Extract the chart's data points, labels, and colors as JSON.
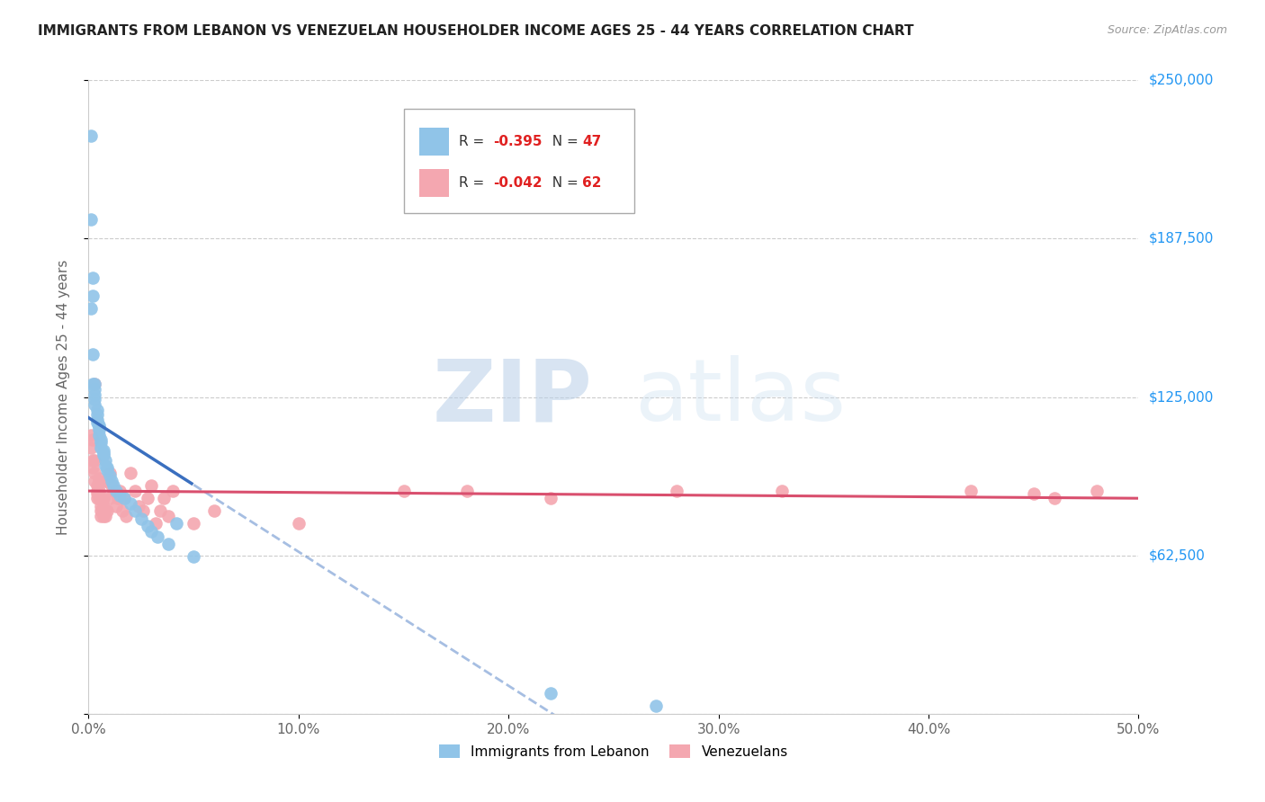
{
  "title": "IMMIGRANTS FROM LEBANON VS VENEZUELAN HOUSEHOLDER INCOME AGES 25 - 44 YEARS CORRELATION CHART",
  "source": "Source: ZipAtlas.com",
  "ylabel": "Householder Income Ages 25 - 44 years",
  "xlabel_ticks": [
    "0.0%",
    "10.0%",
    "20.0%",
    "30.0%",
    "40.0%",
    "50.0%"
  ],
  "xlabel_vals": [
    0.0,
    0.1,
    0.2,
    0.3,
    0.4,
    0.5
  ],
  "ylabel_ticks": [
    "$0",
    "$62,500",
    "$125,000",
    "$187,500",
    "$250,000"
  ],
  "ylabel_vals": [
    0,
    62500,
    125000,
    187500,
    250000
  ],
  "ylim": [
    0,
    250000
  ],
  "xlim": [
    0.0,
    0.5
  ],
  "lebanon_R": "-0.395",
  "lebanon_N": "47",
  "venezuela_R": "-0.042",
  "venezuela_N": "62",
  "lebanon_color": "#90c4e8",
  "venezuela_color": "#f4a7b0",
  "lebanon_line_color": "#3a6fbf",
  "venezuela_line_color": "#d94f6e",
  "lebanon_x": [
    0.001,
    0.001,
    0.001,
    0.002,
    0.002,
    0.002,
    0.002,
    0.003,
    0.003,
    0.003,
    0.003,
    0.003,
    0.004,
    0.004,
    0.004,
    0.004,
    0.005,
    0.005,
    0.005,
    0.005,
    0.006,
    0.006,
    0.006,
    0.007,
    0.007,
    0.007,
    0.008,
    0.008,
    0.009,
    0.009,
    0.01,
    0.011,
    0.012,
    0.013,
    0.015,
    0.017,
    0.02,
    0.022,
    0.025,
    0.028,
    0.03,
    0.033,
    0.038,
    0.042,
    0.05,
    0.22,
    0.27
  ],
  "lebanon_y": [
    228000,
    195000,
    160000,
    172000,
    165000,
    142000,
    130000,
    130000,
    128000,
    126000,
    124000,
    122000,
    120000,
    118000,
    116000,
    115000,
    114000,
    113000,
    112000,
    110000,
    108000,
    107000,
    105000,
    104000,
    103000,
    102000,
    100000,
    98000,
    97000,
    96000,
    94000,
    92000,
    90000,
    88000,
    86000,
    85000,
    83000,
    80000,
    77000,
    74000,
    72000,
    70000,
    67000,
    75000,
    62000,
    8000,
    3000
  ],
  "venezuela_x": [
    0.001,
    0.001,
    0.002,
    0.002,
    0.002,
    0.003,
    0.003,
    0.003,
    0.003,
    0.004,
    0.004,
    0.004,
    0.004,
    0.005,
    0.005,
    0.005,
    0.005,
    0.006,
    0.006,
    0.006,
    0.007,
    0.007,
    0.007,
    0.007,
    0.008,
    0.008,
    0.008,
    0.009,
    0.009,
    0.01,
    0.01,
    0.011,
    0.012,
    0.013,
    0.014,
    0.015,
    0.016,
    0.017,
    0.018,
    0.02,
    0.022,
    0.024,
    0.026,
    0.028,
    0.03,
    0.032,
    0.034,
    0.036,
    0.038,
    0.04,
    0.05,
    0.06,
    0.1,
    0.15,
    0.18,
    0.22,
    0.28,
    0.33,
    0.42,
    0.45,
    0.46,
    0.48
  ],
  "venezuela_y": [
    105000,
    110000,
    100000,
    108000,
    97000,
    95000,
    100000,
    92000,
    130000,
    90000,
    85000,
    88000,
    87000,
    92000,
    93000,
    88000,
    85000,
    80000,
    82000,
    78000,
    80000,
    82000,
    78000,
    85000,
    92000,
    80000,
    78000,
    92000,
    80000,
    95000,
    85000,
    90000,
    88000,
    82000,
    85000,
    88000,
    80000,
    85000,
    78000,
    95000,
    88000,
    82000,
    80000,
    85000,
    90000,
    75000,
    80000,
    85000,
    78000,
    88000,
    75000,
    80000,
    75000,
    88000,
    88000,
    85000,
    88000,
    88000,
    88000,
    87000,
    85000,
    88000
  ]
}
